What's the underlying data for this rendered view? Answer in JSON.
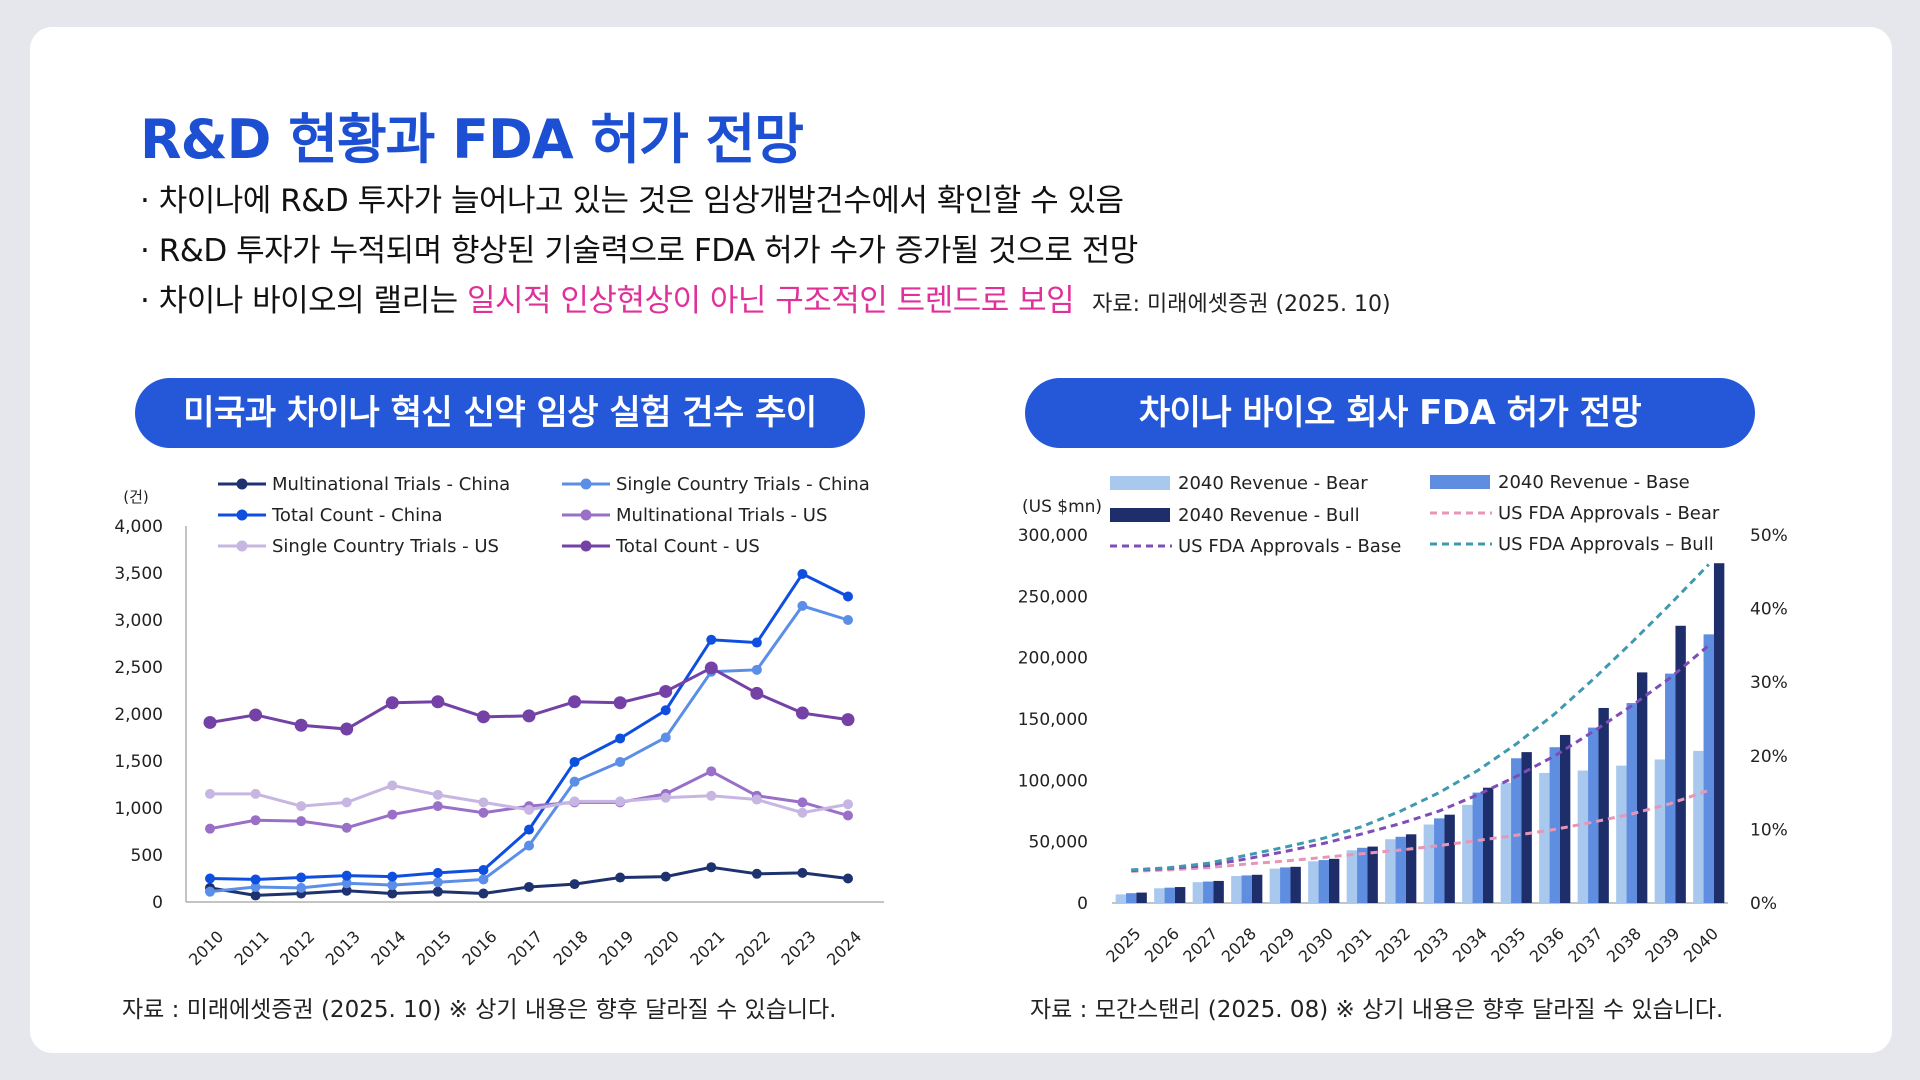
{
  "title": "R&D 현황과 FDA 허가 전망",
  "bullets": [
    {
      "prefix": "· 차이나에 R&D 투자가 늘어나고 있는 것은 임상개발건수에서 확인할 수 있음",
      "highlight": "",
      "source": ""
    },
    {
      "prefix": "· R&D 투자가 누적되며 향상된 기술력으로 FDA 허가 수가 증가될 것으로 전망",
      "highlight": "",
      "source": ""
    },
    {
      "prefix": "· 차이나 바이오의 랠리는 ",
      "highlight": "일시적 인상현상이 아닌 구조적인 트렌드로 보임",
      "source": "자료: 미래에셋증권 (2025. 10)"
    }
  ],
  "left_panel": {
    "pill": "미국과 차이나 혁신 신약 임상 실험 건수 추이",
    "footer": "자료 : 미래에셋증권 (2025. 10) ※ 상기 내용은 향후 달라질 수 있습니다."
  },
  "right_panel": {
    "pill": "차이나 바이오 회사 FDA 허가 전망",
    "footer": "자료 : 모간스탠리 (2025. 08) ※ 상기 내용은 향후 달라질 수 있습니다."
  },
  "chart_data": [
    {
      "type": "line",
      "unit_label": "(건)",
      "x": [
        "2010",
        "2011",
        "2012",
        "2013",
        "2014",
        "2015",
        "2016",
        "2017",
        "2018",
        "2019",
        "2020",
        "2021",
        "2022",
        "2023",
        "2024"
      ],
      "ylim": [
        0,
        4000
      ],
      "yticks": [
        "0",
        "500",
        "1,000",
        "1,500",
        "2,000",
        "2,500",
        "3,000",
        "3,500",
        "4,000"
      ],
      "legend_position": "top",
      "series": [
        {
          "name": "Multinational Trials - China",
          "color": "#1e3270",
          "values": [
            150,
            70,
            90,
            120,
            90,
            110,
            90,
            160,
            190,
            260,
            270,
            370,
            300,
            310,
            250
          ]
        },
        {
          "name": "Single Country Trials - China",
          "color": "#5b8ee6",
          "values": [
            110,
            160,
            150,
            200,
            180,
            210,
            240,
            600,
            1280,
            1490,
            1750,
            2450,
            2470,
            3150,
            3000
          ]
        },
        {
          "name": "Total Count - China",
          "color": "#0f4fe0",
          "values": [
            250,
            240,
            260,
            280,
            270,
            310,
            340,
            770,
            1490,
            1740,
            2040,
            2790,
            2760,
            3490,
            3250
          ]
        },
        {
          "name": "Multinational Trials - US",
          "color": "#9a6fc8",
          "values": [
            780,
            870,
            860,
            790,
            930,
            1020,
            950,
            1020,
            1060,
            1060,
            1150,
            1390,
            1130,
            1060,
            920
          ]
        },
        {
          "name": "Single Country Trials - US",
          "color": "#c7b6e2",
          "values": [
            1150,
            1150,
            1020,
            1060,
            1240,
            1140,
            1060,
            980,
            1070,
            1070,
            1110,
            1130,
            1090,
            950,
            1040
          ]
        },
        {
          "name": "Total Count - US",
          "color": "#7442a6",
          "values": [
            1910,
            1990,
            1880,
            1840,
            2120,
            2130,
            1970,
            1980,
            2130,
            2120,
            2240,
            2490,
            2220,
            2010,
            1940
          ]
        }
      ]
    },
    {
      "type": "bar",
      "y_unit_label": "(US $mn)",
      "categories": [
        "2025",
        "2026",
        "2027",
        "2028",
        "2029",
        "2030",
        "2031",
        "2032",
        "2033",
        "2034",
        "2035",
        "2036",
        "2037",
        "2038",
        "2039",
        "2040"
      ],
      "ylim": [
        0,
        300000
      ],
      "yticks": [
        "0",
        "50,000",
        "100,000",
        "150,000",
        "200,000",
        "250,000",
        "300,000"
      ],
      "y2lim": [
        0,
        50
      ],
      "y2ticks": [
        "0%",
        "10%",
        "20%",
        "30%",
        "40%",
        "50%"
      ],
      "series": [
        {
          "name": "2040 Revenue - Bear",
          "color": "#a9c8ee",
          "values": [
            7000,
            12000,
            17000,
            22000,
            28000,
            34000,
            43000,
            52000,
            64000,
            80000,
            98000,
            106000,
            108000,
            112000,
            117000,
            124000
          ]
        },
        {
          "name": "2040 Revenue - Base",
          "color": "#5f8ee0",
          "values": [
            8000,
            12500,
            17500,
            22500,
            29000,
            35000,
            45000,
            54000,
            69000,
            90000,
            118000,
            127000,
            143000,
            163000,
            187000,
            219000
          ]
        },
        {
          "name": "2040 Revenue - Bull",
          "color": "#1d2e6b",
          "values": [
            8500,
            13000,
            18000,
            23000,
            29500,
            36000,
            46000,
            56000,
            72000,
            94000,
            123000,
            137000,
            159000,
            188000,
            226000,
            277000
          ]
        }
      ],
      "lines": [
        {
          "name": "US FDA Approvals - Bear",
          "color": "#e896b8",
          "axis": "right",
          "values": [
            4.3,
            4.5,
            4.8,
            5.3,
            5.7,
            6.2,
            6.7,
            7.2,
            7.8,
            8.5,
            9.2,
            10.0,
            11.0,
            12.1,
            13.5,
            15.3
          ]
        },
        {
          "name": "US FDA Approvals - Base",
          "color": "#7f4cb8",
          "axis": "right",
          "values": [
            4.4,
            4.7,
            5.1,
            6.0,
            7.0,
            8.1,
            9.4,
            10.8,
            12.5,
            14.7,
            17.2,
            20.0,
            23.3,
            26.8,
            30.6,
            35.0
          ]
        },
        {
          "name": "US FDA Approvals – Bull",
          "color": "#3f9ab0",
          "axis": "right",
          "values": [
            4.5,
            4.8,
            5.4,
            6.5,
            7.6,
            8.8,
            10.4,
            12.5,
            15.0,
            18.0,
            21.6,
            25.7,
            30.4,
            35.4,
            40.6,
            46.0
          ]
        }
      ]
    }
  ]
}
